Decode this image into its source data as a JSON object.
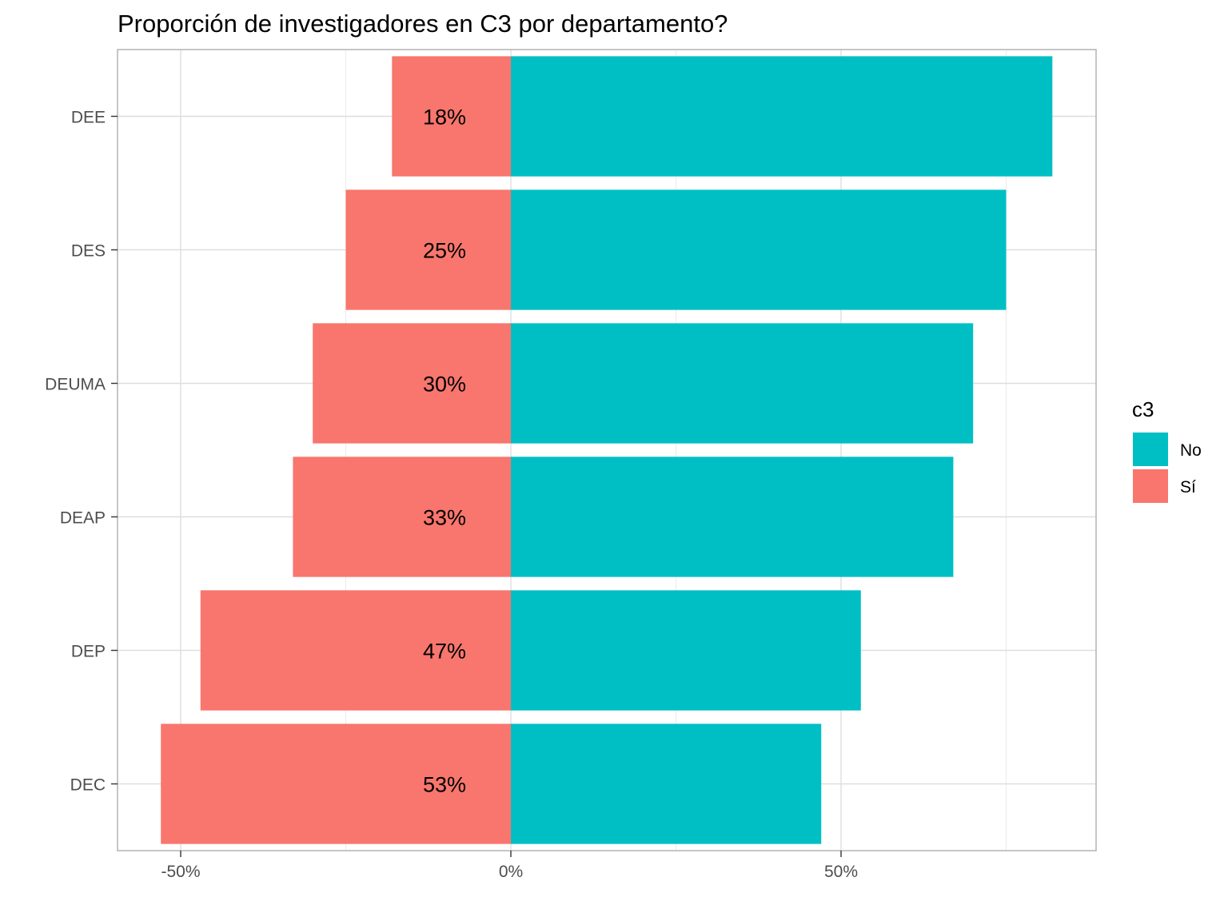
{
  "chart_data": {
    "type": "bar",
    "orientation": "horizontal",
    "title": "Proporción de investigadores en C3 por departamento?",
    "xlabel": "",
    "ylabel": "",
    "xlim": [
      -0.6,
      0.9
    ],
    "x_ticks": [
      -0.5,
      0,
      0.5
    ],
    "x_tick_labels": [
      "-50%",
      "0%",
      "50%"
    ],
    "categories": [
      "DEE",
      "DES",
      "DEUMA",
      "DEAP",
      "DEP",
      "DEC"
    ],
    "series": [
      {
        "name": "No",
        "color": "#00BFC4",
        "values": [
          0.82,
          0.75,
          0.7,
          0.67,
          0.53,
          0.47
        ]
      },
      {
        "name": "Sí",
        "color": "#F8766D",
        "values": [
          -0.18,
          -0.25,
          -0.3,
          -0.33,
          -0.47,
          -0.53
        ]
      }
    ],
    "data_labels": [
      "18%",
      "25%",
      "30%",
      "33%",
      "47%",
      "53%"
    ],
    "legend": {
      "title": "c3",
      "position": "right",
      "items": [
        {
          "label": "No",
          "color": "#00BFC4"
        },
        {
          "label": "Sí",
          "color": "#F8766D"
        }
      ]
    },
    "grid": true
  }
}
